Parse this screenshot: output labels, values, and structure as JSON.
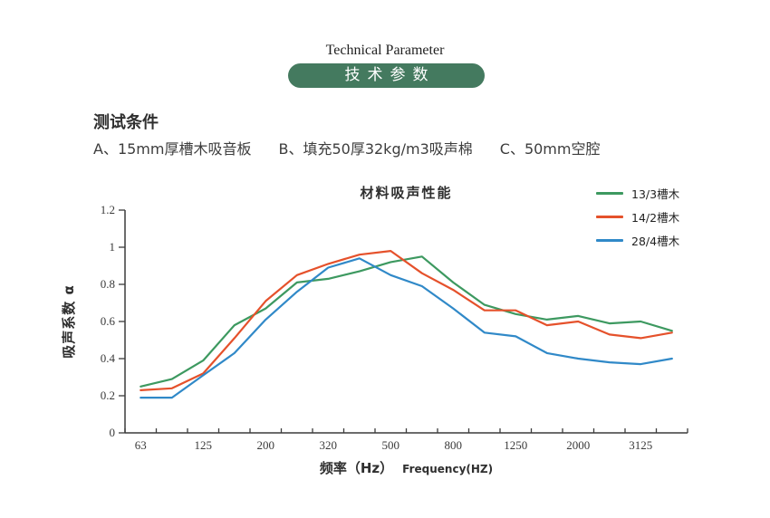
{
  "header": {
    "title_en": "Technical Parameter",
    "badge_zh": "技术参数"
  },
  "conditions": {
    "heading": "测试条件",
    "items": [
      "A、15mm厚槽木吸音板",
      "B、填充50厚32kg/m3吸声棉",
      "C、50mm空腔"
    ]
  },
  "chart_data": {
    "type": "line",
    "title": "材料吸声性能",
    "xlabel": "频率（Hz）",
    "xlabel_en": "Frequency(HZ)",
    "ylabel": "吸声系数 α",
    "x_tick_labels": [
      "63",
      "125",
      "200",
      "320",
      "500",
      "800",
      "1250",
      "2000",
      "3125"
    ],
    "x_tick_note": "labels sit under every other minor tick; 18 data points per series, one per minor-tick band",
    "y_tick_labels": [
      "0",
      "0.2",
      "0.4",
      "0.6",
      "0.8",
      "1",
      "1.2"
    ],
    "ylim": [
      0,
      1.2
    ],
    "grid": false,
    "legend_position": "top-right",
    "series": [
      {
        "name": "13/3槽木",
        "color": "#3d9960",
        "values": [
          0.25,
          0.29,
          0.39,
          0.58,
          0.67,
          0.81,
          0.83,
          0.87,
          0.92,
          0.95,
          0.81,
          0.69,
          0.64,
          0.61,
          0.63,
          0.59,
          0.6,
          0.55
        ]
      },
      {
        "name": "14/2槽木",
        "color": "#e5512b",
        "values": [
          0.23,
          0.24,
          0.32,
          0.51,
          0.71,
          0.85,
          0.91,
          0.96,
          0.98,
          0.86,
          0.77,
          0.66,
          0.66,
          0.58,
          0.6,
          0.53,
          0.51,
          0.54
        ]
      },
      {
        "name": "28/4槽木",
        "color": "#3089c8",
        "values": [
          0.19,
          0.19,
          0.31,
          0.43,
          0.61,
          0.76,
          0.89,
          0.94,
          0.85,
          0.79,
          0.67,
          0.54,
          0.52,
          0.43,
          0.4,
          0.38,
          0.37,
          0.4
        ]
      }
    ]
  },
  "colors": {
    "badge_green": "#447a5f",
    "axis": "#3c3c3c"
  }
}
